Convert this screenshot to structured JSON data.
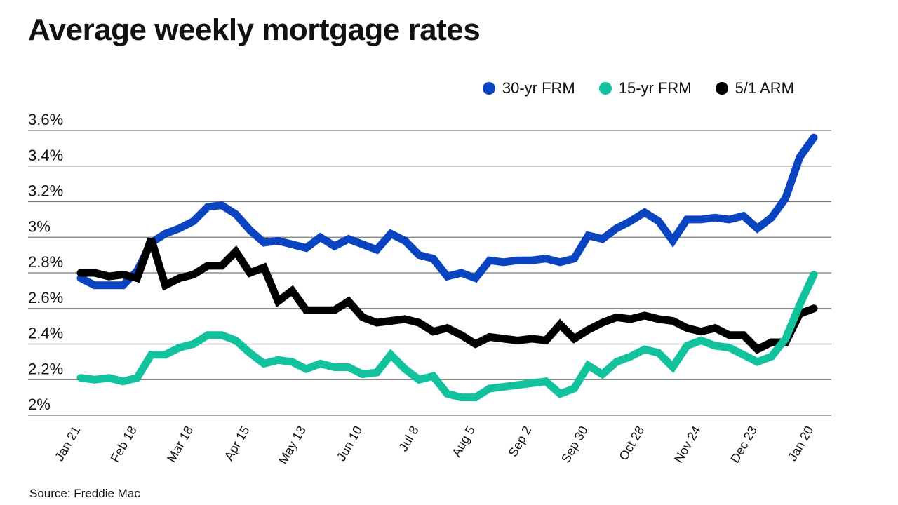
{
  "chart_data": {
    "type": "line",
    "title": "Average weekly mortgage rates",
    "source": "Source: Freddie Mac",
    "ylim": [
      2,
      3.6
    ],
    "y_ticks": [
      "2%",
      "2.2%",
      "2.4%",
      "2.6%",
      "2.8%",
      "3%",
      "3.2%",
      "3.4%",
      "3.6%"
    ],
    "y_tick_values": [
      2,
      2.2,
      2.4,
      2.6,
      2.8,
      3.0,
      3.2,
      3.4,
      3.6
    ],
    "x_tick_labels": [
      "Jan 21",
      "Feb 18",
      "Mar 18",
      "Apr 15",
      "May 13",
      "Jun 10",
      "Jul 8",
      "Aug 5",
      "Sep 2",
      "Sep 30",
      "Oct 28",
      "Nov 24",
      "Dec 23",
      "Jan 20"
    ],
    "x_tick_week_index": [
      0,
      4,
      8,
      12,
      16,
      20,
      24,
      28,
      32,
      36,
      40,
      44,
      48,
      52
    ],
    "grid": true,
    "legend_position": "top-right",
    "series": [
      {
        "name": "30-yr FRM",
        "color": "#0a44c0",
        "values": [
          2.77,
          2.73,
          2.73,
          2.73,
          2.81,
          2.97,
          3.02,
          3.05,
          3.09,
          3.17,
          3.18,
          3.13,
          3.04,
          2.97,
          2.98,
          2.96,
          2.94,
          3.0,
          2.95,
          2.99,
          2.96,
          2.93,
          3.02,
          2.98,
          2.9,
          2.88,
          2.78,
          2.8,
          2.77,
          2.87,
          2.86,
          2.87,
          2.87,
          2.88,
          2.86,
          2.88,
          3.01,
          2.99,
          3.05,
          3.09,
          3.14,
          3.09,
          2.98,
          3.1,
          3.1,
          3.11,
          3.1,
          3.12,
          3.05,
          3.11,
          3.22,
          3.45,
          3.56
        ]
      },
      {
        "name": "15-yr FRM",
        "color": "#12c29c",
        "values": [
          2.21,
          2.2,
          2.21,
          2.19,
          2.21,
          2.34,
          2.34,
          2.38,
          2.4,
          2.45,
          2.45,
          2.42,
          2.35,
          2.29,
          2.31,
          2.3,
          2.26,
          2.29,
          2.27,
          2.27,
          2.23,
          2.24,
          2.34,
          2.26,
          2.2,
          2.22,
          2.12,
          2.1,
          2.1,
          2.15,
          2.16,
          2.17,
          2.18,
          2.19,
          2.12,
          2.15,
          2.28,
          2.23,
          2.3,
          2.33,
          2.37,
          2.35,
          2.27,
          2.39,
          2.42,
          2.39,
          2.38,
          2.34,
          2.3,
          2.33,
          2.43,
          2.62,
          2.79
        ]
      },
      {
        "name": "5/1 ARM",
        "color": "#000000",
        "values": [
          2.8,
          2.8,
          2.78,
          2.79,
          2.77,
          2.99,
          2.73,
          2.77,
          2.79,
          2.84,
          2.84,
          2.92,
          2.8,
          2.83,
          2.64,
          2.7,
          2.59,
          2.59,
          2.59,
          2.64,
          2.55,
          2.52,
          2.53,
          2.54,
          2.52,
          2.47,
          2.49,
          2.45,
          2.4,
          2.44,
          2.43,
          2.42,
          2.43,
          2.42,
          2.51,
          2.43,
          2.48,
          2.52,
          2.55,
          2.54,
          2.56,
          2.54,
          2.53,
          2.49,
          2.47,
          2.49,
          2.45,
          2.45,
          2.37,
          2.41,
          2.41,
          2.57,
          2.6
        ]
      }
    ]
  }
}
